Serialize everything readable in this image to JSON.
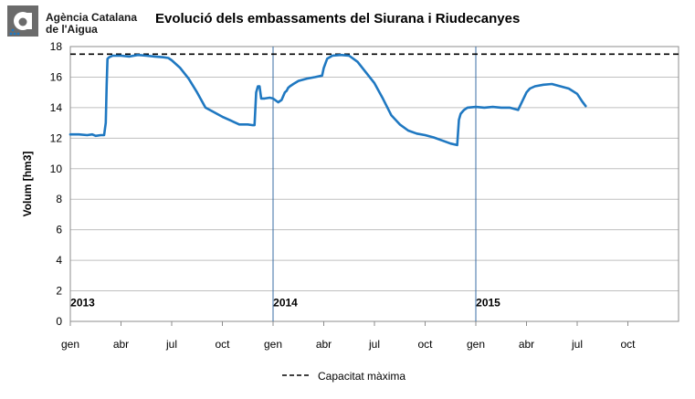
{
  "logo": {
    "line1": "Agència Catalana",
    "line2": "de l'Aigua"
  },
  "chart_data": {
    "type": "line",
    "title": "Evolució dels embassaments del Siurana i Riudecanyes",
    "ylabel": "Volum [hm3]",
    "xlabel": "",
    "ylim": [
      0,
      18
    ],
    "yticks": [
      0,
      2,
      4,
      6,
      8,
      10,
      12,
      14,
      16,
      18
    ],
    "xlim_months": [
      0,
      36
    ],
    "xticks": [
      {
        "m": 0,
        "label": "gen"
      },
      {
        "m": 3,
        "label": "abr"
      },
      {
        "m": 6,
        "label": "jul"
      },
      {
        "m": 9,
        "label": "oct"
      },
      {
        "m": 12,
        "label": "gen"
      },
      {
        "m": 15,
        "label": "abr"
      },
      {
        "m": 18,
        "label": "jul"
      },
      {
        "m": 21,
        "label": "oct"
      },
      {
        "m": 24,
        "label": "gen"
      },
      {
        "m": 27,
        "label": "abr"
      },
      {
        "m": 30,
        "label": "jul"
      },
      {
        "m": 33,
        "label": "oct"
      }
    ],
    "year_labels": [
      {
        "m": 1,
        "label": "2013"
      },
      {
        "m": 13,
        "label": "2014"
      },
      {
        "m": 25,
        "label": "2015"
      }
    ],
    "year_separators_months": [
      12,
      24
    ],
    "capacity": {
      "name": "Capacitat màxima",
      "value": 17.5
    },
    "grid": true,
    "legend": "bottom",
    "colors": {
      "series": "#1f78c1",
      "capacity": "#000000",
      "grid": "#bfbfbf"
    },
    "series": [
      {
        "x_months": [
          0,
          0.5,
          1.0,
          1.3,
          1.5,
          1.8,
          2.0,
          2.1,
          2.15,
          2.2,
          2.3,
          2.5,
          3.0,
          3.5,
          4.0,
          4.5,
          5.0,
          5.5,
          5.8,
          6.0,
          6.5,
          7.0,
          7.5,
          8.0,
          8.5,
          9.0,
          9.5,
          10.0,
          10.5,
          10.8,
          10.9,
          11.0,
          11.1,
          11.2,
          11.3,
          11.4,
          11.5,
          11.8,
          12.0,
          12.3,
          12.5,
          12.7,
          12.8,
          12.9,
          13.0,
          13.2,
          13.5,
          14.0,
          14.5,
          14.9,
          15.0,
          15.2,
          15.5,
          16.0,
          16.5,
          17.0,
          17.5,
          18.0,
          18.5,
          19.0,
          19.5,
          20.0,
          20.5,
          21.0,
          21.5,
          22.0,
          22.5,
          22.9,
          23.0,
          23.1,
          23.3,
          23.5,
          24.0,
          24.5,
          25.0,
          25.5,
          26.0,
          26.5,
          27.0,
          27.2,
          27.5,
          28.0,
          28.5,
          29.0,
          29.5,
          30.0,
          30.3,
          30.5
        ],
        "y": [
          12.25,
          12.25,
          12.2,
          12.25,
          12.15,
          12.2,
          12.2,
          13.0,
          15.5,
          17.2,
          17.3,
          17.4,
          17.4,
          17.35,
          17.45,
          17.4,
          17.35,
          17.3,
          17.25,
          17.1,
          16.6,
          15.9,
          15.0,
          14.0,
          13.7,
          13.4,
          13.15,
          12.9,
          12.9,
          12.85,
          12.85,
          15.0,
          15.4,
          15.4,
          14.6,
          14.6,
          14.6,
          14.65,
          14.6,
          14.35,
          14.5,
          15.0,
          15.1,
          15.3,
          15.4,
          15.55,
          15.75,
          15.9,
          16.0,
          16.1,
          16.6,
          17.2,
          17.4,
          17.45,
          17.4,
          17.0,
          16.3,
          15.6,
          14.6,
          13.5,
          12.9,
          12.5,
          12.3,
          12.2,
          12.05,
          11.85,
          11.65,
          11.55,
          13.2,
          13.6,
          13.85,
          14.0,
          14.05,
          14.0,
          14.05,
          14.0,
          14.0,
          13.85,
          15.0,
          15.25,
          15.4,
          15.5,
          15.55,
          15.4,
          15.25,
          14.9,
          14.4,
          14.1
        ]
      }
    ]
  }
}
